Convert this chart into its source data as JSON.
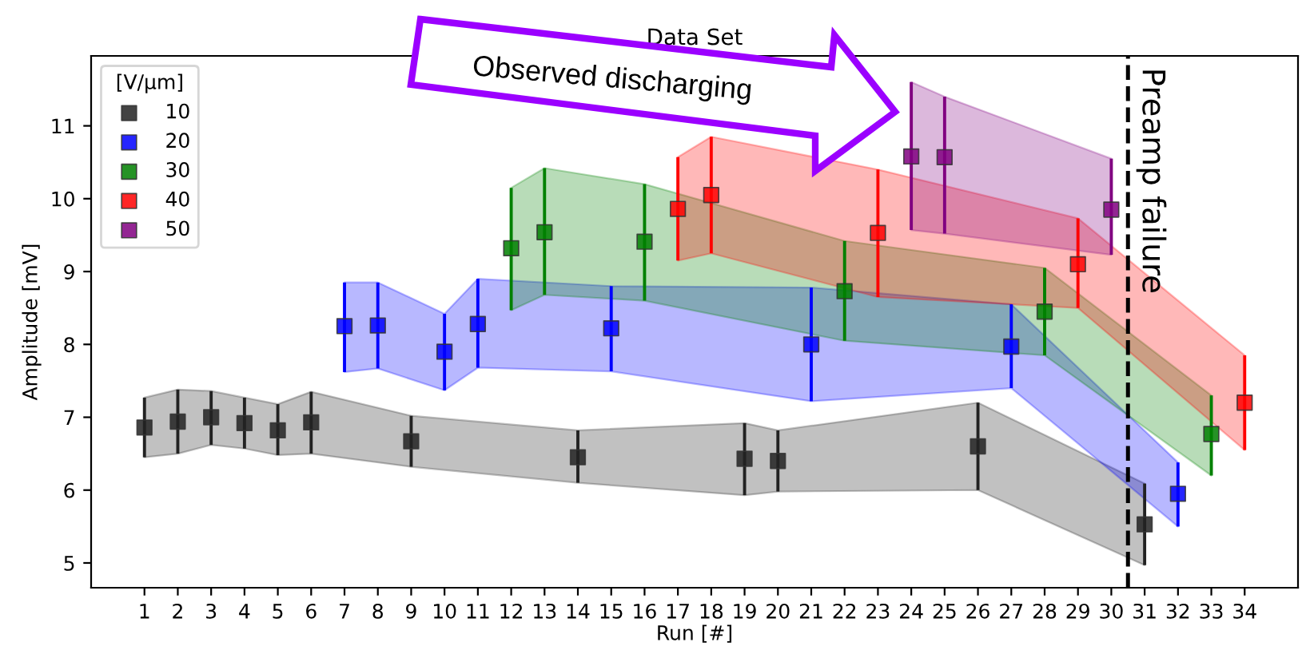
{
  "chart_data": {
    "type": "scatter",
    "title": "Data Set",
    "xlabel": "Run [#]",
    "ylabel": "Amplitude [mV]",
    "legend_title": "[V/μm]",
    "annotations": [
      "Observed discharging"
    ],
    "xlim": [
      -0.6,
      35.6
    ],
    "xticks": [
      1,
      2,
      3,
      4,
      5,
      6,
      7,
      8,
      9,
      10,
      11,
      12,
      13,
      14,
      15,
      16,
      17,
      18,
      19,
      20,
      21,
      22,
      23,
      24,
      25,
      26,
      27,
      28,
      29,
      30,
      31,
      32,
      33,
      34
    ],
    "ylim": [
      4.66,
      11.96
    ],
    "yticks": [
      5,
      6,
      7,
      8,
      9,
      10,
      11
    ],
    "grid": false,
    "legend": "top left",
    "marker": "square",
    "ref_lines": [
      {
        "axis": "x",
        "value": 30.5,
        "label": "Preamp failure",
        "color": "#000000",
        "line_style": "dashed"
      }
    ],
    "series": [
      {
        "name": "10",
        "color": "#222222",
        "x": [
          1,
          2,
          3,
          4,
          5,
          6,
          9,
          14,
          19,
          20,
          26,
          31
        ],
        "values": [
          6.86,
          6.94,
          7.0,
          6.92,
          6.82,
          6.93,
          6.67,
          6.45,
          6.43,
          6.4,
          6.6,
          5.53
        ],
        "errors": [
          [
            6.45,
            7.27
          ],
          [
            6.5,
            7.38
          ],
          [
            6.62,
            7.36
          ],
          [
            6.57,
            7.27
          ],
          [
            6.48,
            7.18
          ],
          [
            6.5,
            7.35
          ],
          [
            6.32,
            7.02
          ],
          [
            6.1,
            6.82
          ],
          [
            5.93,
            6.92
          ],
          [
            5.98,
            6.82
          ],
          [
            6.0,
            7.2
          ],
          [
            4.97,
            6.09
          ]
        ],
        "lower": [
          6.45,
          6.5,
          6.62,
          6.57,
          6.48,
          6.5,
          6.32,
          6.1,
          5.93,
          5.98,
          6.0,
          4.97
        ],
        "upper": [
          7.27,
          7.38,
          7.36,
          7.27,
          7.18,
          7.35,
          7.02,
          6.82,
          6.92,
          6.82,
          7.2,
          6.09
        ]
      },
      {
        "name": "20",
        "color": "#0000ff",
        "x": [
          7,
          8,
          10,
          11,
          15,
          21,
          27,
          32
        ],
        "values": [
          8.25,
          8.26,
          7.9,
          8.28,
          8.22,
          8.0,
          7.97,
          5.95
        ],
        "errors": [
          [
            7.62,
            8.85
          ],
          [
            7.67,
            8.85
          ],
          [
            7.37,
            8.42
          ],
          [
            7.68,
            8.9
          ],
          [
            7.63,
            8.8
          ],
          [
            7.22,
            8.78
          ],
          [
            7.4,
            8.55
          ],
          [
            5.5,
            6.38
          ]
        ],
        "lower": [
          7.62,
          7.67,
          7.37,
          7.68,
          7.63,
          7.22,
          7.4,
          5.5
        ],
        "upper": [
          8.85,
          8.85,
          8.42,
          8.9,
          8.8,
          8.78,
          8.55,
          6.38
        ]
      },
      {
        "name": "30",
        "color": "#008000",
        "x": [
          12,
          13,
          16,
          22,
          28,
          33
        ],
        "values": [
          9.32,
          9.54,
          9.41,
          8.73,
          8.45,
          6.77
        ],
        "errors": [
          [
            8.47,
            10.15
          ],
          [
            8.68,
            10.42
          ],
          [
            8.6,
            10.2
          ],
          [
            8.05,
            9.42
          ],
          [
            7.85,
            9.05
          ],
          [
            6.2,
            7.3
          ]
        ],
        "lower": [
          8.47,
          8.68,
          8.6,
          8.05,
          7.85,
          6.2
        ],
        "upper": [
          10.15,
          10.42,
          10.2,
          9.42,
          9.05,
          7.3
        ]
      },
      {
        "name": "40",
        "color": "#ff0000",
        "x": [
          17,
          18,
          23,
          29,
          34
        ],
        "values": [
          9.86,
          10.05,
          9.53,
          9.1,
          7.2
        ],
        "errors": [
          [
            9.15,
            10.57
          ],
          [
            9.25,
            10.85
          ],
          [
            8.65,
            10.4
          ],
          [
            8.5,
            9.73
          ],
          [
            6.55,
            7.85
          ]
        ],
        "lower": [
          9.15,
          9.25,
          8.65,
          8.5,
          6.55
        ],
        "upper": [
          10.57,
          10.85,
          10.4,
          9.73,
          7.85
        ]
      },
      {
        "name": "50",
        "color": "#800080",
        "x": [
          24,
          25,
          30
        ],
        "values": [
          10.58,
          10.57,
          9.85
        ],
        "errors": [
          [
            9.57,
            11.6
          ],
          [
            9.52,
            11.4
          ],
          [
            9.23,
            10.55
          ]
        ],
        "lower": [
          9.57,
          9.52,
          9.23
        ],
        "upper": [
          11.6,
          11.4,
          10.55
        ]
      }
    ]
  }
}
